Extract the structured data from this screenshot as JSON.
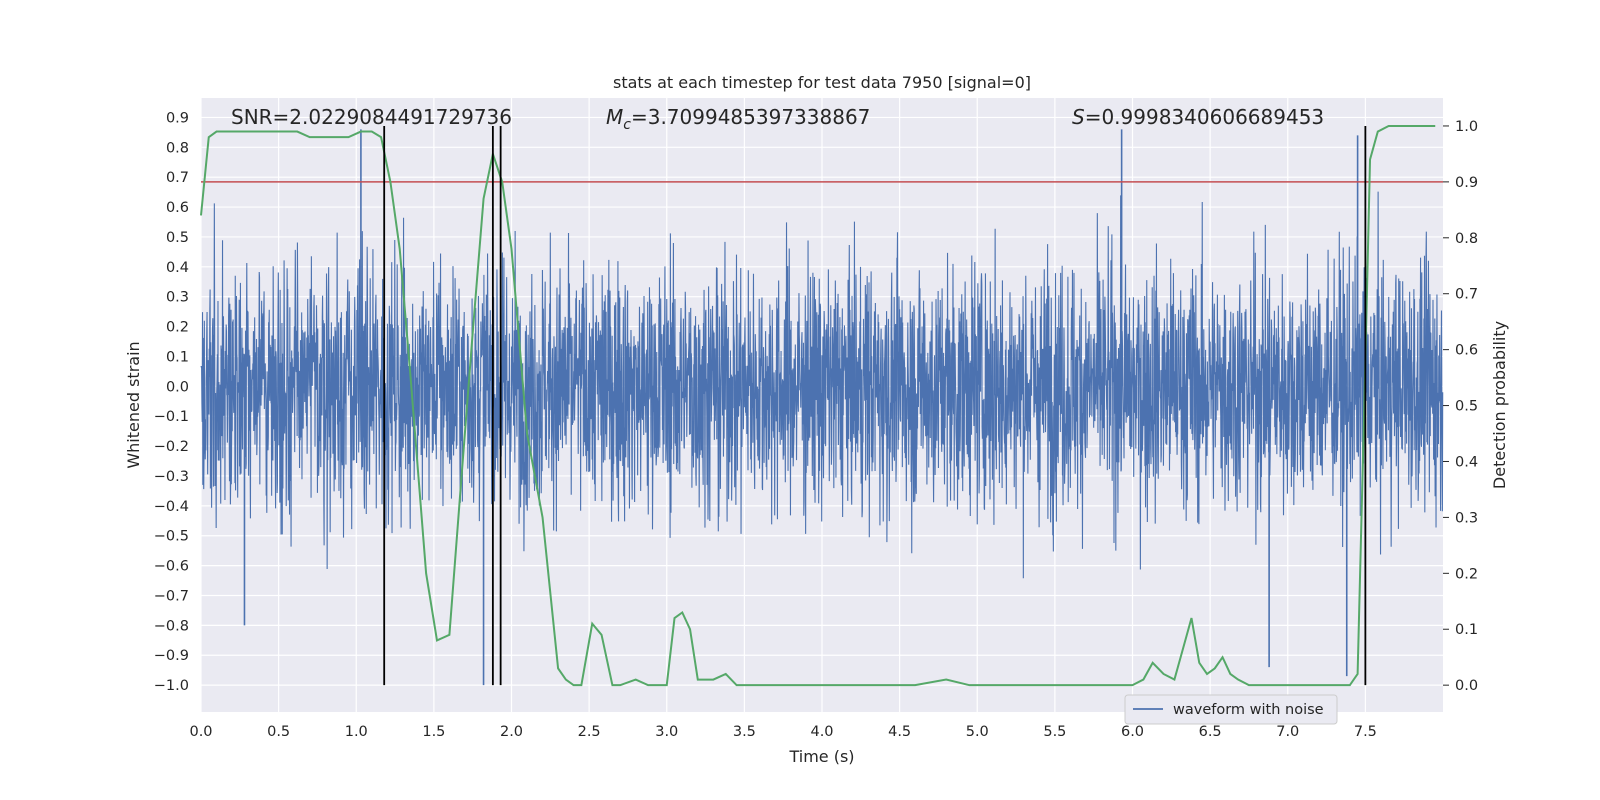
{
  "chart_data": {
    "type": "line",
    "title": "stats at each timestep for test data 7950 [signal=0]",
    "xlabel": "Time (s)",
    "ylabel_left": "Whitened strain",
    "ylabel_right": "Detection probability",
    "xlim": [
      0,
      8
    ],
    "ylim_left": [
      -1.09,
      0.965
    ],
    "ylim_right": [
      -0.048,
      1.05
    ],
    "x_ticks": [
      "0.0",
      "0.5",
      "1.0",
      "1.5",
      "2.0",
      "2.5",
      "3.0",
      "3.5",
      "4.0",
      "4.5",
      "5.0",
      "5.5",
      "6.0",
      "6.5",
      "7.0",
      "7.5"
    ],
    "y_left_ticks": [
      "0.9",
      "0.8",
      "0.7",
      "0.6",
      "0.5",
      "0.4",
      "0.3",
      "0.2",
      "0.1",
      "0.0",
      "-0.1",
      "-0.2",
      "-0.3",
      "-0.4",
      "-0.5",
      "-0.6",
      "-0.7",
      "-0.8",
      "-0.9",
      "-1.0"
    ],
    "y_right_ticks": [
      "1.0",
      "0.9",
      "0.8",
      "0.7",
      "0.6",
      "0.5",
      "0.4",
      "0.3",
      "0.2",
      "0.1",
      "0.0"
    ],
    "grid": true,
    "annotations": {
      "snr": "SNR=2.0229084491729736",
      "mc_symbol": "M",
      "mc_sub": "c",
      "mc_value": "=3.7099485397338867",
      "s_symbol": "S",
      "s_value": "=0.9998340606689453"
    },
    "legend": {
      "label": "waveform with noise",
      "position": "lower-right"
    },
    "threshold": {
      "value": 0.9,
      "axis": "right",
      "color": "#c44e52"
    },
    "vlines": [
      1.18,
      1.88,
      1.93,
      7.5
    ],
    "strain_series": {
      "name": "waveform with noise",
      "color": "#4c72b0",
      "sample_count": 4096,
      "envelope_quantile_3sigma": 0.32,
      "notable_peaks": [
        {
          "x": 1.03,
          "y": 0.86
        },
        {
          "x": 5.93,
          "y": 0.86
        },
        {
          "x": 7.45,
          "y": 0.84
        },
        {
          "x": 0.28,
          "y": -0.8
        },
        {
          "x": 1.82,
          "y": -1.0
        },
        {
          "x": 6.88,
          "y": -0.94
        },
        {
          "x": 7.38,
          "y": -0.97
        }
      ]
    },
    "probability_series": {
      "name": "detection probability",
      "color": "#55a868",
      "x": [
        0.0,
        0.05,
        0.1,
        0.2,
        0.35,
        0.5,
        0.62,
        0.7,
        0.8,
        0.88,
        0.95,
        1.03,
        1.1,
        1.16,
        1.22,
        1.28,
        1.35,
        1.45,
        1.52,
        1.6,
        1.68,
        1.75,
        1.82,
        1.88,
        1.94,
        2.0,
        2.1,
        2.2,
        2.3,
        2.35,
        2.4,
        2.45,
        2.52,
        2.58,
        2.65,
        2.7,
        2.8,
        2.88,
        2.95,
        3.0,
        3.05,
        3.1,
        3.15,
        3.2,
        3.3,
        3.38,
        3.45,
        3.6,
        3.8,
        4.0,
        4.4,
        4.6,
        4.8,
        4.95,
        5.1,
        5.3,
        5.6,
        5.8,
        5.9,
        6.0,
        6.07,
        6.13,
        6.2,
        6.27,
        6.32,
        6.38,
        6.43,
        6.48,
        6.53,
        6.58,
        6.63,
        6.68,
        6.75,
        6.85,
        7.0,
        7.2,
        7.4,
        7.45,
        7.5,
        7.53,
        7.58,
        7.65,
        7.75,
        7.95
      ],
      "y": [
        0.84,
        0.98,
        0.99,
        0.99,
        0.99,
        0.99,
        0.99,
        0.98,
        0.98,
        0.98,
        0.98,
        0.99,
        0.99,
        0.98,
        0.9,
        0.78,
        0.55,
        0.2,
        0.08,
        0.09,
        0.38,
        0.63,
        0.87,
        0.95,
        0.9,
        0.78,
        0.45,
        0.3,
        0.03,
        0.01,
        0.0,
        0.0,
        0.11,
        0.09,
        0.0,
        0.0,
        0.01,
        0.0,
        0.0,
        0.0,
        0.12,
        0.13,
        0.1,
        0.01,
        0.01,
        0.02,
        0.0,
        0.0,
        0.0,
        0.0,
        0.0,
        0.0,
        0.01,
        0.0,
        0.0,
        0.0,
        0.0,
        0.0,
        0.0,
        0.0,
        0.01,
        0.04,
        0.02,
        0.01,
        0.06,
        0.12,
        0.04,
        0.02,
        0.03,
        0.05,
        0.02,
        0.01,
        0.0,
        0.0,
        0.0,
        0.0,
        0.0,
        0.02,
        0.58,
        0.94,
        0.99,
        1.0,
        1.0,
        1.0
      ]
    }
  }
}
